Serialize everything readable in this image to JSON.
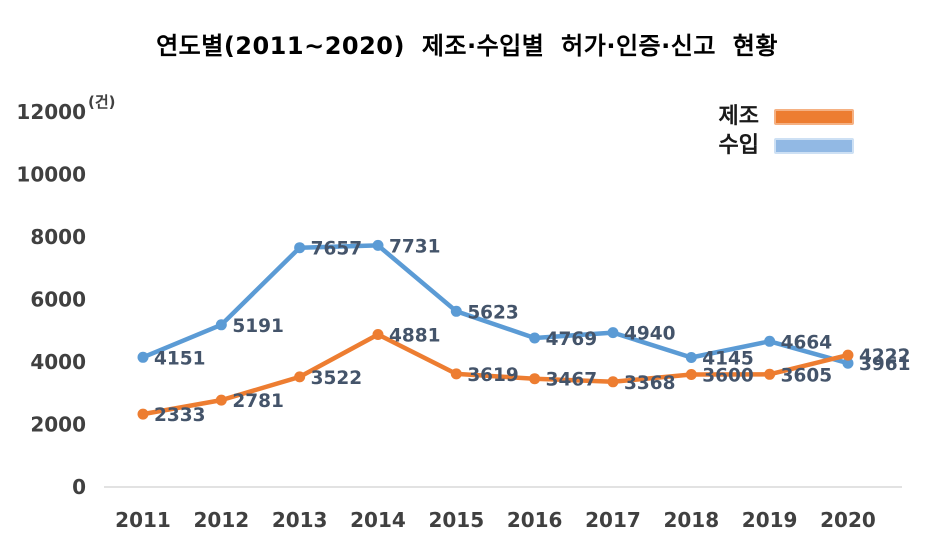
{
  "title": "연도별(2011~2020) 제조·수입별 허가·인증·신고 현황",
  "legend": [
    {
      "label": "제조",
      "swatch": "#ED7D31",
      "swatch_border": "#F5B183"
    },
    {
      "label": "수입",
      "swatch": "#92B9E4",
      "swatch_border": "#CDE0F4"
    }
  ],
  "chart_data": {
    "type": "line",
    "title": "연도별(2011~2020) 제조·수입별 허가·인증·신고 현황",
    "x": [
      "2011",
      "2012",
      "2013",
      "2014",
      "2015",
      "2016",
      "2017",
      "2018",
      "2019",
      "2020"
    ],
    "xlabel": "",
    "ylabel": "(건)",
    "ylim": [
      0,
      12000
    ],
    "yticks": [
      0,
      2000,
      4000,
      6000,
      8000,
      10000,
      12000
    ],
    "grid": false,
    "legend_position": "top-right",
    "data_labels": true,
    "series": [
      {
        "key": "manufacturing",
        "name": "제조",
        "color": "#ED7D31",
        "values": [
          2333,
          2781,
          3522,
          4881,
          3619,
          3467,
          3368,
          3600,
          3605,
          4222
        ]
      },
      {
        "key": "import",
        "name": "수입",
        "color": "#5B9BD5",
        "values": [
          4151,
          5191,
          7657,
          7731,
          5623,
          4769,
          4940,
          4145,
          4664,
          3961
        ]
      }
    ],
    "axis_line_color": "#D9D9D9"
  }
}
